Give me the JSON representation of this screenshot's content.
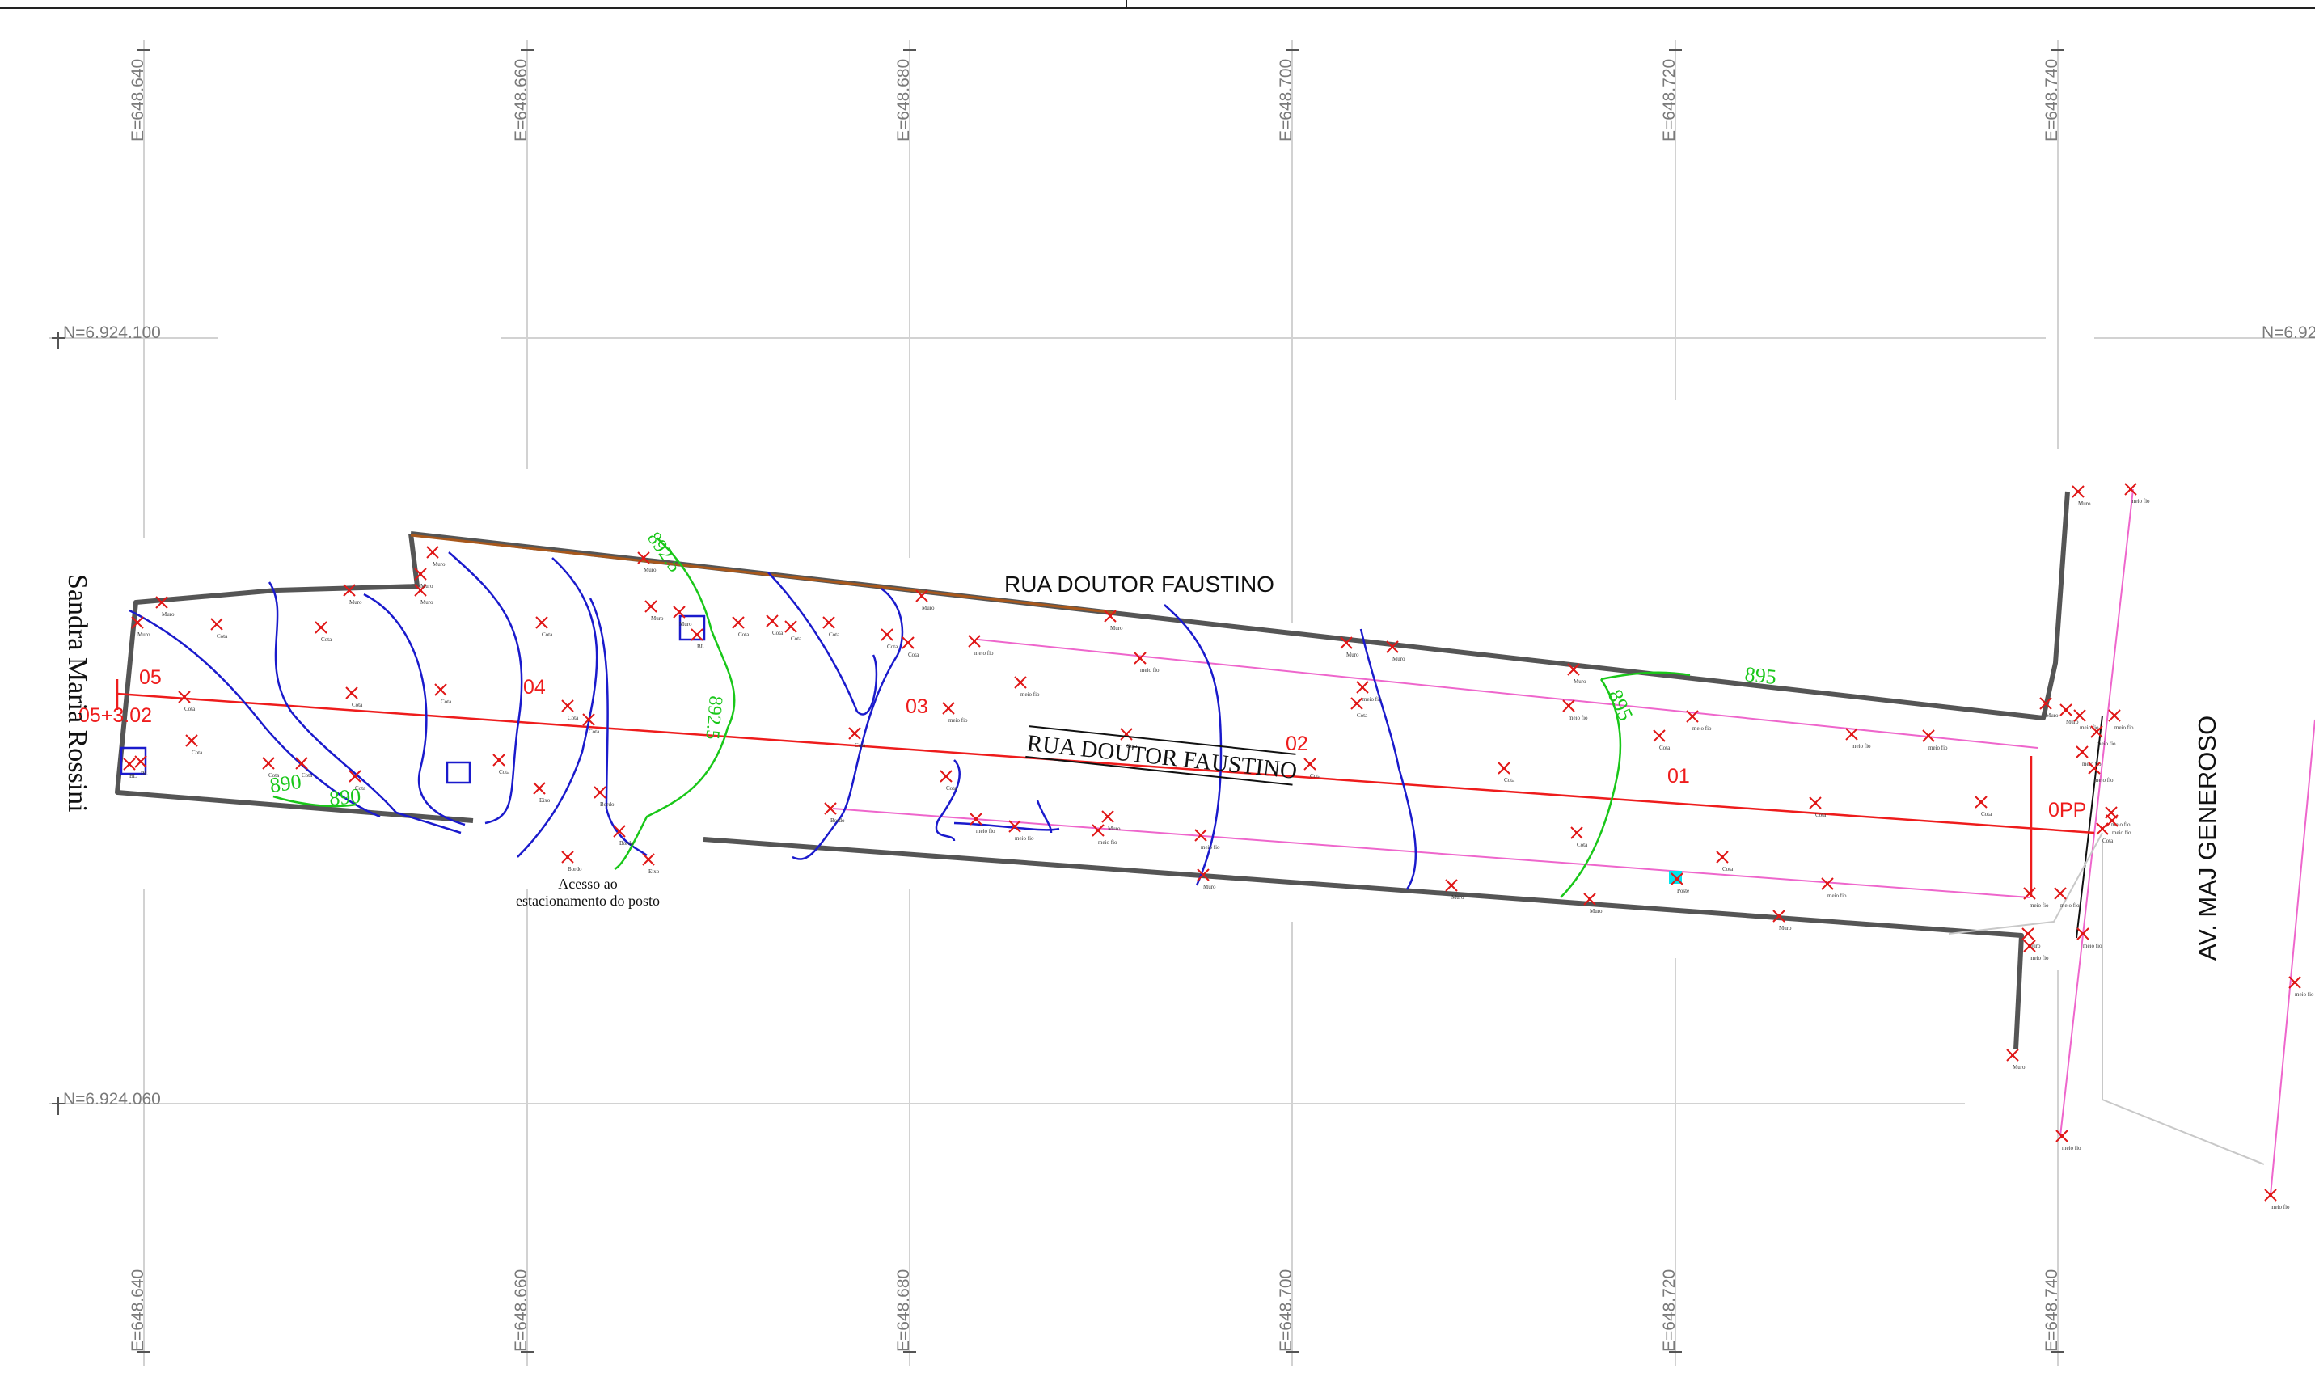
{
  "grid": {
    "e_labels": [
      "E=648.640",
      "E=648.660",
      "E=648.680",
      "E=648.700",
      "E=648.720",
      "E=648.740"
    ],
    "n_labels": [
      "N=6.924.100",
      "N=6.924.060"
    ],
    "n_label_partial": "N=6.92"
  },
  "streets": {
    "top": "RUA DOUTOR FAUSTINO",
    "center": "RUA DOUTOR FAUSTINO",
    "left": "Sandra Maria Rossini",
    "right": "AV. MAJ GENEROSO"
  },
  "stations": [
    "05",
    "05+3.02",
    "04",
    "03",
    "02",
    "01",
    "0PP"
  ],
  "contours": [
    "895",
    "895",
    "890",
    "890",
    "892.5",
    "892.5"
  ],
  "annotation": {
    "line1": "Acesso ao",
    "line2": "estacionamento do posto"
  },
  "point_labels": [
    "Muro",
    "Cota",
    "Bordo",
    "meio fio",
    "BL",
    "Eixo",
    "Poste"
  ],
  "colors": {
    "axis": "#ee1c1c",
    "curb": "#ee66cc",
    "contour_main": "#19c719",
    "contour_minor": "#1a1acc",
    "wall": "#555555",
    "grid": "#d2d2d2",
    "edge_brown": "#a8581c"
  }
}
